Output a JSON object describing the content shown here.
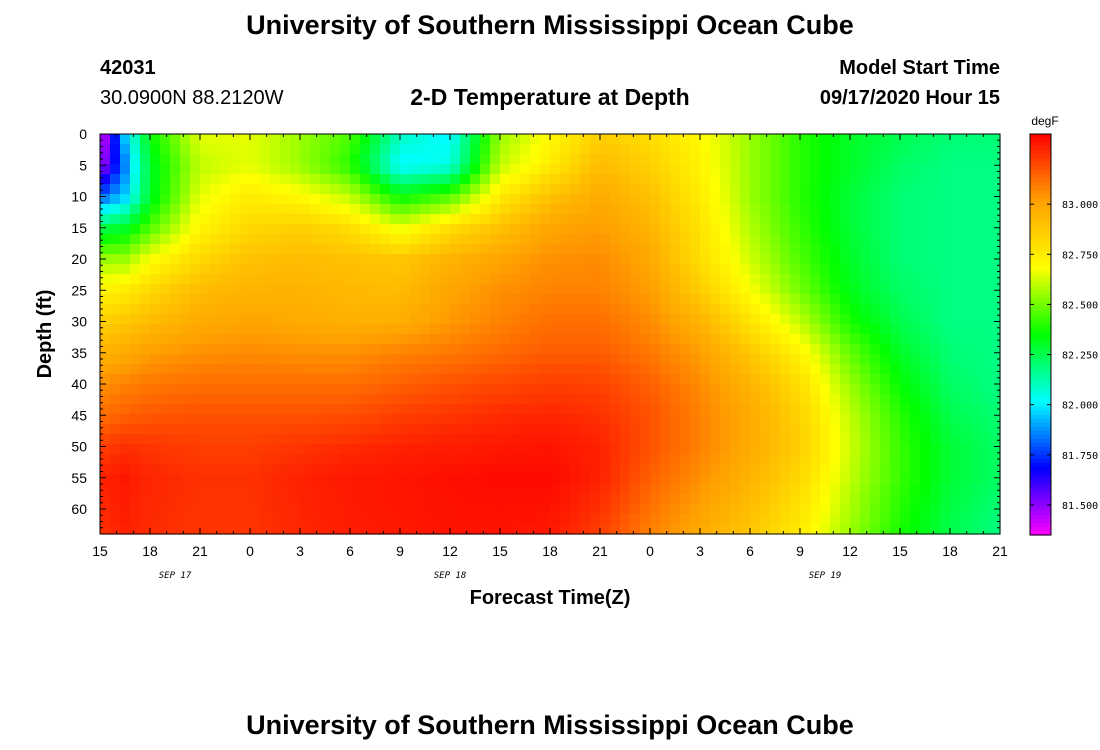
{
  "header": {
    "title": "University of Southern Mississippi Ocean Cube",
    "station_id": "42031",
    "location": "30.0900N 88.2120W",
    "subtitle": "2-D Temperature at Depth",
    "model_start_label": "Model Start Time",
    "model_start_value": "09/17/2020 Hour 15"
  },
  "footer": {
    "title": "University of Southern Mississippi Ocean Cube"
  },
  "colors": {
    "scale": [
      "#ff00ff",
      "#0000ff",
      "#00ffff",
      "#00ff00",
      "#ffff00",
      "#ffa000",
      "#ff0000"
    ]
  },
  "chart_data": {
    "type": "heatmap",
    "title": "2-D Temperature at Depth",
    "xlabel": "Forecast Time(Z)",
    "ylabel": "Depth (ft)",
    "units": "degF",
    "x_hours": [
      0,
      3,
      6,
      9,
      12,
      15,
      18,
      21,
      24,
      27,
      30,
      33,
      36,
      39,
      42,
      45,
      48,
      51,
      54
    ],
    "x_tick_labels": [
      "15",
      "18",
      "21",
      "0",
      "3",
      "6",
      "9",
      "12",
      "15",
      "18",
      "21",
      "0",
      "3",
      "6",
      "9",
      "12",
      "15",
      "18",
      "21"
    ],
    "x_range_hours": [
      0,
      54
    ],
    "date_labels": [
      {
        "text": "SEP 17",
        "hour": 4.5
      },
      {
        "text": "SEP 18",
        "hour": 21
      },
      {
        "text": "SEP 19",
        "hour": 43.5
      }
    ],
    "y_ticks": [
      0,
      5,
      10,
      15,
      20,
      25,
      30,
      35,
      40,
      45,
      50,
      55,
      60
    ],
    "y_range": [
      0,
      64
    ],
    "depths": [
      0,
      5,
      10,
      15,
      20,
      25,
      30,
      35,
      40,
      45,
      50,
      55,
      64
    ],
    "times": [
      0,
      1.5,
      3,
      6,
      9,
      12,
      15,
      18,
      21,
      24,
      27,
      30,
      33,
      36,
      39,
      42,
      45,
      48,
      51,
      54
    ],
    "temperatures": [
      [
        81.35,
        81.95,
        82.35,
        82.65,
        82.65,
        82.55,
        82.45,
        82.1,
        82.0,
        82.55,
        82.7,
        82.85,
        82.8,
        82.7,
        82.55,
        82.4,
        82.3,
        82.25,
        82.2,
        82.2
      ],
      [
        81.45,
        81.85,
        82.3,
        82.6,
        82.65,
        82.55,
        82.4,
        82.0,
        82.05,
        82.6,
        82.75,
        82.92,
        82.85,
        82.72,
        82.55,
        82.4,
        82.3,
        82.22,
        82.18,
        82.18
      ],
      [
        81.8,
        81.95,
        82.3,
        82.65,
        82.75,
        82.7,
        82.6,
        82.35,
        82.45,
        82.75,
        82.9,
        82.98,
        82.9,
        82.75,
        82.55,
        82.4,
        82.28,
        82.2,
        82.18,
        82.18
      ],
      [
        82.25,
        82.3,
        82.45,
        82.72,
        82.82,
        82.85,
        82.8,
        82.65,
        82.8,
        82.9,
        83.0,
        83.02,
        82.95,
        82.78,
        82.58,
        82.42,
        82.28,
        82.2,
        82.18,
        82.18
      ],
      [
        82.55,
        82.55,
        82.68,
        82.82,
        82.9,
        82.92,
        82.9,
        82.88,
        82.95,
        83.0,
        83.05,
        83.06,
        82.99,
        82.8,
        82.62,
        82.45,
        82.3,
        82.2,
        82.18,
        82.18
      ],
      [
        82.72,
        82.75,
        82.82,
        82.92,
        82.95,
        82.95,
        82.93,
        82.92,
        83.0,
        83.05,
        83.08,
        83.08,
        83.02,
        82.86,
        82.68,
        82.5,
        82.32,
        82.22,
        82.18,
        82.18
      ],
      [
        82.85,
        82.88,
        82.92,
        82.98,
        83.0,
        82.98,
        82.96,
        82.97,
        83.03,
        83.08,
        83.12,
        83.12,
        83.06,
        82.95,
        82.78,
        82.6,
        82.38,
        82.25,
        82.18,
        82.18
      ],
      [
        82.95,
        82.98,
        83.02,
        83.05,
        83.06,
        83.05,
        83.05,
        83.08,
        83.1,
        83.13,
        83.16,
        83.16,
        83.1,
        83.02,
        82.88,
        82.72,
        82.48,
        82.3,
        82.2,
        82.18
      ],
      [
        83.05,
        83.08,
        83.1,
        83.12,
        83.12,
        83.12,
        83.12,
        83.15,
        83.18,
        83.2,
        83.22,
        83.21,
        83.15,
        83.06,
        82.95,
        82.8,
        82.55,
        82.35,
        82.22,
        82.18
      ],
      [
        83.12,
        83.15,
        83.17,
        83.18,
        83.18,
        83.18,
        83.19,
        83.22,
        83.24,
        83.26,
        83.27,
        83.25,
        83.18,
        83.08,
        82.98,
        82.84,
        82.6,
        82.4,
        82.25,
        82.2
      ],
      [
        83.22,
        83.25,
        83.24,
        83.22,
        83.22,
        83.24,
        83.26,
        83.28,
        83.29,
        83.3,
        83.31,
        83.28,
        83.18,
        83.08,
        82.98,
        82.86,
        82.62,
        82.42,
        82.28,
        82.22
      ],
      [
        83.28,
        83.3,
        83.27,
        83.25,
        83.25,
        83.28,
        83.3,
        83.31,
        83.32,
        83.33,
        83.33,
        83.28,
        83.15,
        83.05,
        82.95,
        82.82,
        82.6,
        82.42,
        82.28,
        82.22
      ],
      [
        83.25,
        83.28,
        83.26,
        83.24,
        83.24,
        83.27,
        83.29,
        83.3,
        83.31,
        83.31,
        83.3,
        83.22,
        83.08,
        82.98,
        82.88,
        82.75,
        82.55,
        82.38,
        82.25,
        82.18
      ]
    ],
    "colorbar": {
      "label": "degF",
      "range": [
        81.35,
        83.35
      ],
      "tick_values": [
        81.5,
        81.75,
        82.0,
        82.25,
        82.5,
        82.75,
        83.0
      ],
      "tick_labels": [
        "81.500",
        "81.750",
        "82.000",
        "82.250",
        "82.500",
        "82.750",
        "83.000"
      ]
    }
  }
}
